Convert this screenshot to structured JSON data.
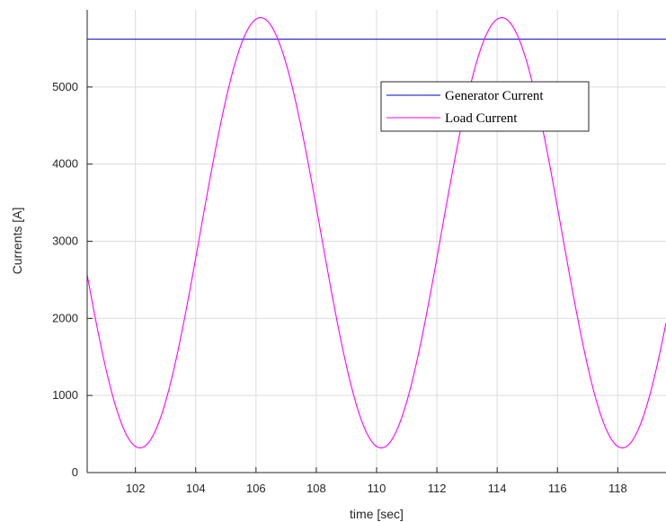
{
  "chart_data": {
    "type": "line",
    "title": "",
    "xlabel": "time [sec]",
    "ylabel": "Currents [A]",
    "xlim": [
      100.4,
      119.6
    ],
    "ylim": [
      0,
      6000
    ],
    "xticks": [
      102,
      104,
      106,
      108,
      110,
      112,
      114,
      116,
      118
    ],
    "yticks": [
      0,
      1000,
      2000,
      3000,
      4000,
      5000
    ],
    "grid": true,
    "legend": "top-right",
    "series": [
      {
        "name": "Generator Current",
        "color": "#0000cc",
        "kind": "constant",
        "value": 5620
      },
      {
        "name": "Load Current",
        "color": "#ff00ff",
        "kind": "sinusoid",
        "mean": 3110,
        "amplitude": 2790,
        "period": 8,
        "peak_times": [
          106.15,
          114.15
        ],
        "trough_times": [
          102.15,
          110.15,
          118.15
        ]
      }
    ]
  }
}
